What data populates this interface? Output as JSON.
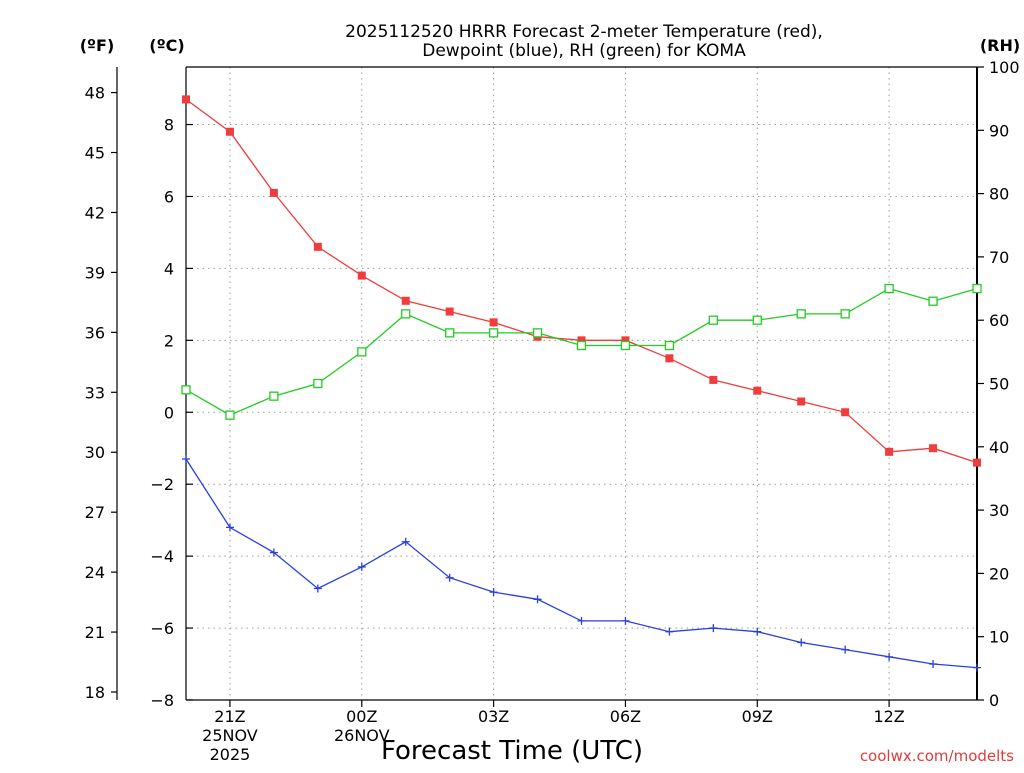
{
  "chart_data": {
    "type": "line",
    "title_lines": [
      "2025112520 HRRR Forecast 2-meter Temperature (red),",
      "Dewpoint (blue), RH (green) for KOMA"
    ],
    "xlabel": "Forecast Time (UTC)",
    "credit": "coolwx.com/modelts",
    "unit_labels": {
      "f": "(ºF)",
      "c": "(ºC)",
      "rh": "(RH)"
    },
    "colors": {
      "temperature": "#f03c3c",
      "dewpoint": "#2a3fe0",
      "rh": "#22cc22",
      "grid": "#9a9a9a",
      "credit": "#e03c3c"
    },
    "x_hours": [
      0,
      1,
      2,
      3,
      4,
      5,
      6,
      7,
      8,
      9,
      10,
      11,
      12,
      13,
      14,
      15,
      16,
      17,
      18
    ],
    "xlim": [
      0,
      18
    ],
    "x_ticks": [
      {
        "hour": 1,
        "lines": [
          "21Z",
          "25NOV",
          "2025"
        ]
      },
      {
        "hour": 4,
        "lines": [
          "00Z",
          "26NOV"
        ]
      },
      {
        "hour": 7,
        "lines": [
          "03Z"
        ]
      },
      {
        "hour": 10,
        "lines": [
          "06Z"
        ]
      },
      {
        "hour": 13,
        "lines": [
          "09Z"
        ]
      },
      {
        "hour": 16,
        "lines": [
          "12Z"
        ]
      }
    ],
    "c_axis": {
      "ylim": [
        -8,
        9.6
      ],
      "ticks": [
        8,
        6,
        4,
        2,
        0,
        -2,
        -4,
        -6,
        -8
      ],
      "tick_labels": [
        "8",
        "6",
        "4",
        "2",
        "0",
        "−2",
        "−4",
        "−6",
        "−8"
      ]
    },
    "f_axis": {
      "ticks": [
        48,
        45,
        42,
        39,
        36,
        33,
        30,
        27,
        24,
        21,
        18
      ],
      "tick_labels": [
        "48",
        "45",
        "42",
        "39",
        "36",
        "33",
        "30",
        "27",
        "24",
        "21",
        "18"
      ]
    },
    "rh_axis": {
      "ylim": [
        0,
        100
      ],
      "ticks": [
        100,
        90,
        80,
        70,
        60,
        50,
        40,
        30,
        20,
        10,
        0
      ],
      "tick_labels": [
        "100",
        "90",
        "80",
        "70",
        "60",
        "50",
        "40",
        "30",
        "20",
        "10",
        "0"
      ]
    },
    "series": [
      {
        "name": "Temperature",
        "unit": "C",
        "axis": "c",
        "marker": "filled-square",
        "values": [
          8.7,
          7.8,
          6.1,
          4.6,
          3.8,
          3.1,
          2.8,
          2.5,
          2.1,
          2.0,
          2.0,
          1.5,
          0.9,
          0.6,
          0.3,
          0.0,
          -1.1,
          -1.0,
          -1.4
        ]
      },
      {
        "name": "Dewpoint",
        "unit": "C",
        "axis": "c",
        "marker": "plus",
        "values": [
          -1.3,
          -3.2,
          -3.9,
          -4.9,
          -4.3,
          -3.6,
          -4.6,
          -5.0,
          -5.2,
          -5.8,
          -5.8,
          -6.1,
          -6.0,
          -6.1,
          -6.4,
          -6.6,
          -6.8,
          -7.0,
          -7.1
        ]
      },
      {
        "name": "RH",
        "unit": "%",
        "axis": "rh",
        "marker": "open-square",
        "values": [
          49,
          45,
          48,
          50,
          55,
          61,
          58,
          58,
          58,
          56,
          56,
          56,
          60,
          60,
          61,
          61,
          65,
          63,
          65
        ]
      }
    ]
  }
}
